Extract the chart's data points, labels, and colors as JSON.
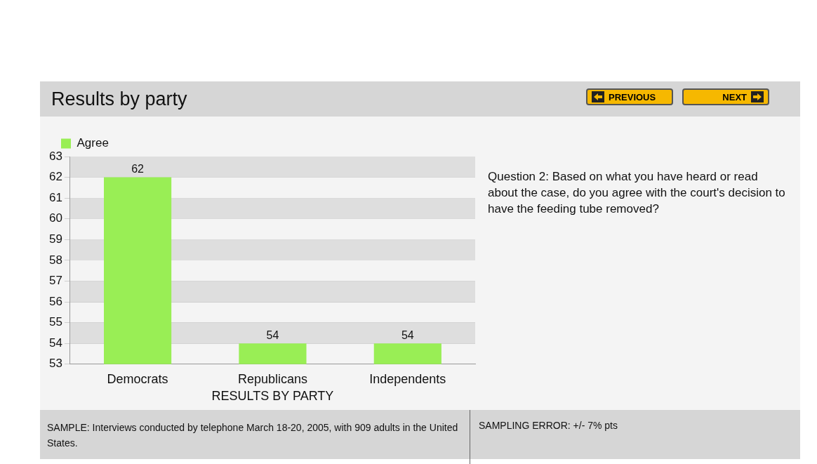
{
  "chart_data": {
    "type": "bar",
    "title": "Results by party",
    "xlabel": "RESULTS BY PARTY",
    "categories": [
      "Democrats",
      "Republicans",
      "Independents"
    ],
    "series": [
      {
        "name": "Agree",
        "color": "#99ee55",
        "values": [
          62,
          54,
          54
        ]
      }
    ],
    "ylim": [
      53,
      63
    ],
    "yticks": [
      53,
      54,
      55,
      56,
      57,
      58,
      59,
      60,
      61,
      62,
      63
    ],
    "grid": "y",
    "legend": "top left",
    "data_labels": true,
    "annotations": [
      "Question 2: Based on what you have heard or read about the case, do you agree with the court's decision to have the feeding tube removed?",
      "SAMPLE: Interviews conducted by telephone March 18-20, 2005, with 909 adults in the United States.",
      "SAMPLING ERROR: +/- 7% pts",
      "PREVIOUS",
      "NEXT"
    ]
  }
}
